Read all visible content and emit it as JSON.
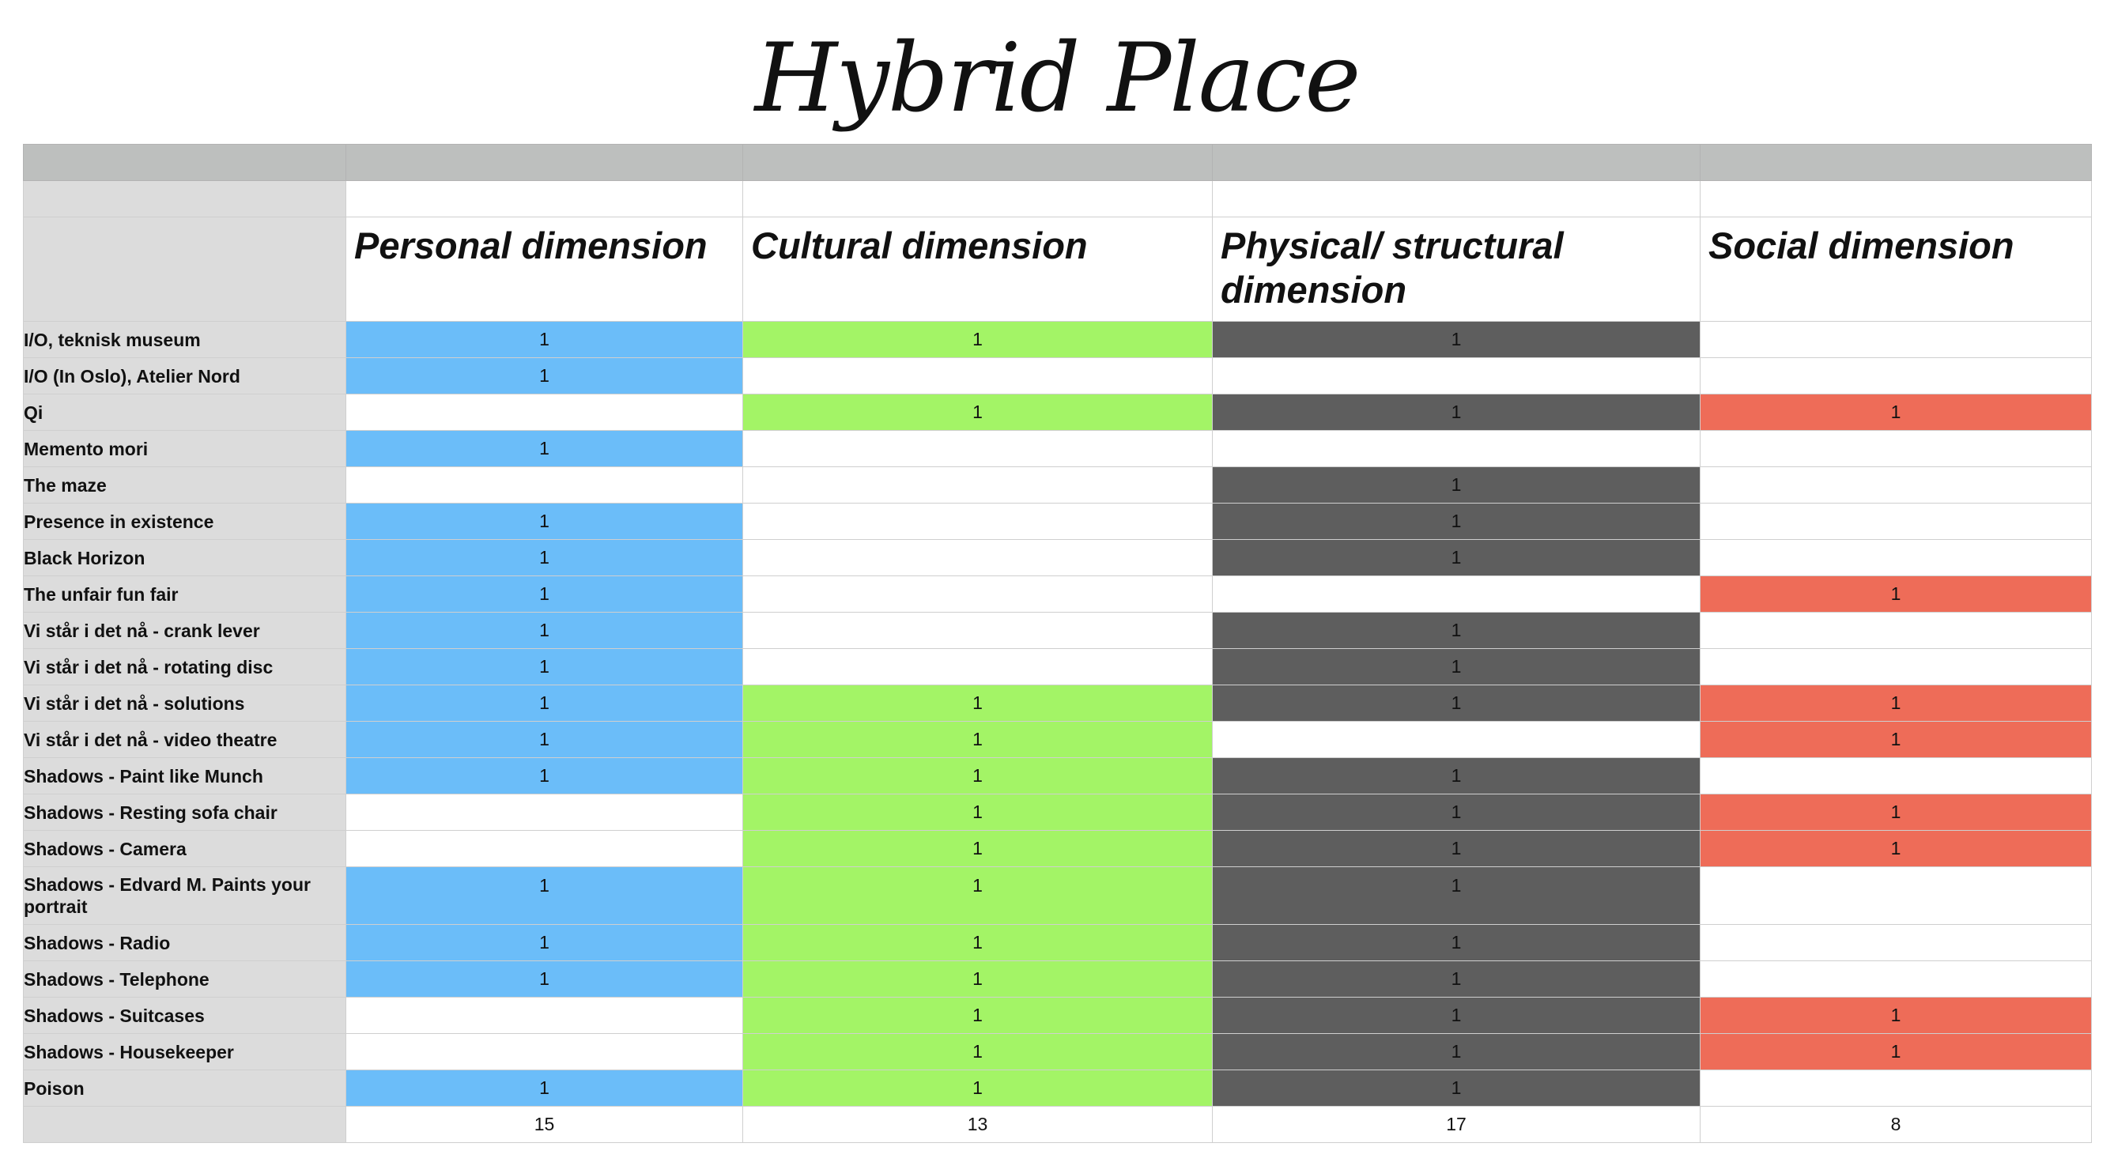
{
  "title": "Hybrid Place",
  "columns": [
    "Personal dimension",
    "Cultural dimension",
    "Physical/ structural dimension",
    "Social dimension"
  ],
  "colors": {
    "personal": "#6bbdf9",
    "cultural": "#a3f466",
    "physical": "#5e5e5e",
    "social": "#ee6c58",
    "label_bg": "#dcdcdc",
    "header_bg": "#bdbfbe"
  },
  "rows": [
    {
      "label": "I/O, teknisk museum",
      "values": [
        "1",
        "1",
        "1",
        ""
      ]
    },
    {
      "label": "I/O (In Oslo), Atelier Nord",
      "values": [
        "1",
        "",
        "",
        ""
      ]
    },
    {
      "label": "Qi",
      "values": [
        "",
        "1",
        "1",
        "1"
      ]
    },
    {
      "label": "Memento mori",
      "values": [
        "1",
        "",
        "",
        ""
      ]
    },
    {
      "label": "The maze",
      "values": [
        "",
        "",
        "1",
        ""
      ]
    },
    {
      "label": "Presence in existence",
      "values": [
        "1",
        "",
        "1",
        ""
      ]
    },
    {
      "label": "Black Horizon",
      "values": [
        "1",
        "",
        "1",
        ""
      ]
    },
    {
      "label": "The unfair fun fair",
      "values": [
        "1",
        "",
        "",
        "1"
      ]
    },
    {
      "label": "Vi står i det nå - crank lever",
      "values": [
        "1",
        "",
        "1",
        ""
      ]
    },
    {
      "label": "Vi står i det nå  - rotating disc",
      "values": [
        "1",
        "",
        "1",
        ""
      ]
    },
    {
      "label": "Vi står i det nå - solutions",
      "values": [
        "1",
        "1",
        "1",
        "1"
      ]
    },
    {
      "label": "Vi står i det nå - video theatre",
      "values": [
        "1",
        "1",
        "",
        "1"
      ]
    },
    {
      "label": "Shadows - Paint like Munch",
      "values": [
        "1",
        "1",
        "1",
        ""
      ]
    },
    {
      "label": "Shadows - Resting sofa chair",
      "values": [
        "",
        "1",
        "1",
        "1"
      ]
    },
    {
      "label": "Shadows - Camera",
      "values": [
        "",
        "1",
        "1",
        "1"
      ]
    },
    {
      "label": "Shadows - Edvard M. Paints your portrait",
      "values": [
        "1",
        "1",
        "1",
        ""
      ]
    },
    {
      "label": "Shadows - Radio",
      "values": [
        "1",
        "1",
        "1",
        ""
      ]
    },
    {
      "label": "Shadows - Telephone",
      "values": [
        "1",
        "1",
        "1",
        ""
      ]
    },
    {
      "label": "Shadows - Suitcases",
      "values": [
        "",
        "1",
        "1",
        "1"
      ]
    },
    {
      "label": "Shadows - Housekeeper",
      "values": [
        "",
        "1",
        "1",
        "1"
      ]
    },
    {
      "label": "Poison",
      "values": [
        "1",
        "1",
        "1",
        ""
      ]
    }
  ],
  "totals": [
    "15",
    "13",
    "17",
    "8"
  ]
}
